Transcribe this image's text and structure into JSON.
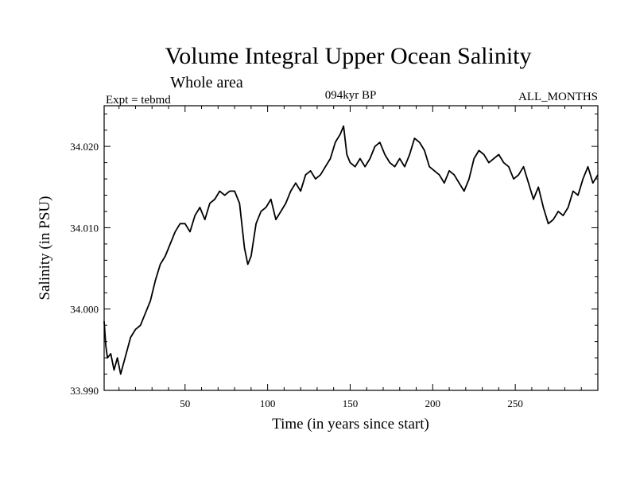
{
  "chart_data": {
    "type": "line",
    "title": "Volume Integral Upper Ocean Salinity",
    "subtitle": "Whole area",
    "left_label": "Expt = tebmd",
    "center_label": "094kyr BP",
    "right_label": "ALL_MONTHS",
    "xlabel": "Time (in years since start)",
    "ylabel": "Salinity (in PSU)",
    "xlim": [
      1,
      300
    ],
    "ylim": [
      33.99,
      34.025
    ],
    "xticks": [
      50,
      100,
      150,
      200,
      250
    ],
    "yticks": [
      33.99,
      34.0,
      34.01,
      34.02
    ],
    "ytick_labels": [
      "33.990",
      "34.000",
      "34.010",
      "34.020"
    ],
    "series": [
      {
        "name": "Salinity",
        "x": [
          1,
          2,
          3,
          5,
          7,
          9,
          11,
          13,
          15,
          17,
          20,
          23,
          26,
          29,
          32,
          35,
          38,
          41,
          44,
          47,
          50,
          53,
          56,
          59,
          62,
          65,
          68,
          71,
          74,
          77,
          80,
          83,
          86,
          88,
          90,
          93,
          96,
          99,
          102,
          105,
          108,
          111,
          114,
          117,
          120,
          123,
          126,
          129,
          132,
          135,
          138,
          141,
          144,
          146,
          148,
          150,
          153,
          156,
          159,
          162,
          165,
          168,
          171,
          174,
          177,
          180,
          183,
          186,
          189,
          192,
          195,
          198,
          201,
          204,
          207,
          210,
          213,
          216,
          219,
          222,
          225,
          228,
          231,
          234,
          237,
          240,
          243,
          246,
          249,
          252,
          255,
          258,
          261,
          264,
          267,
          270,
          273,
          276,
          279,
          282,
          285,
          288,
          291,
          294,
          297,
          300
        ],
        "values": [
          33.9985,
          33.9955,
          33.994,
          33.9945,
          33.9925,
          33.994,
          33.992,
          33.9935,
          33.995,
          33.9965,
          33.9975,
          33.998,
          33.9995,
          34.001,
          34.0035,
          34.0055,
          34.0065,
          34.008,
          34.0095,
          34.0105,
          34.0105,
          34.0095,
          34.0115,
          34.0125,
          34.011,
          34.013,
          34.0135,
          34.0145,
          34.014,
          34.0145,
          34.0145,
          34.013,
          34.0075,
          34.0055,
          34.0065,
          34.0105,
          34.012,
          34.0125,
          34.0135,
          34.011,
          34.012,
          34.013,
          34.0145,
          34.0155,
          34.0145,
          34.0165,
          34.017,
          34.016,
          34.0165,
          34.0175,
          34.0185,
          34.0205,
          34.0215,
          34.0225,
          34.019,
          34.018,
          34.0175,
          34.0185,
          34.0175,
          34.0185,
          34.02,
          34.0205,
          34.019,
          34.018,
          34.0175,
          34.0185,
          34.0175,
          34.019,
          34.021,
          34.0205,
          34.0195,
          34.0175,
          34.017,
          34.0165,
          34.0155,
          34.017,
          34.0165,
          34.0155,
          34.0145,
          34.016,
          34.0185,
          34.0195,
          34.019,
          34.018,
          34.0185,
          34.019,
          34.018,
          34.0175,
          34.016,
          34.0165,
          34.0175,
          34.0155,
          34.0135,
          34.015,
          34.0125,
          34.0105,
          34.011,
          34.012,
          34.0115,
          34.0125,
          34.0145,
          34.014,
          34.016,
          34.0175,
          34.0155,
          34.0165
        ]
      }
    ]
  }
}
